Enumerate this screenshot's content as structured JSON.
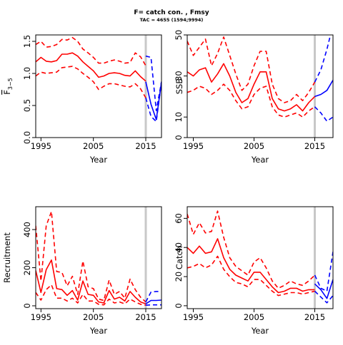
{
  "title": "F= catch con. , Fmsy",
  "subtitle": "TAC = 4655 (1594;9994)",
  "colors": {
    "historic": "#ff0000",
    "forecast": "#0000ff",
    "vline": "#c8c8c8",
    "axis": "#000000"
  },
  "chart_data": [
    {
      "type": "line",
      "id": "fbar",
      "xlabel": "Year",
      "ylabel": "F3-5",
      "ylabel_main": "F",
      "ylabel_sub": "3−5",
      "ylabel_bar": true,
      "xlim": [
        1994,
        2018
      ],
      "ylim": [
        0,
        1.6
      ],
      "xticks": [
        1995,
        2005,
        2015
      ],
      "yticks": [
        0.0,
        0.5,
        1.0,
        1.5
      ],
      "ytick_labels": [
        "0.0",
        "0.5",
        "1.0",
        "1.5"
      ],
      "vline": 2015,
      "grid": false,
      "series": [
        {
          "role": "historic",
          "style": "solid",
          "x": [
            1994,
            1995,
            1996,
            1997,
            1998,
            1999,
            2000,
            2001,
            2002,
            2003,
            2004,
            2005,
            2006,
            2007,
            2008,
            2009,
            2010,
            2011,
            2012,
            2013,
            2014,
            2015
          ],
          "y": [
            1.18,
            1.25,
            1.19,
            1.18,
            1.2,
            1.3,
            1.3,
            1.32,
            1.27,
            1.18,
            1.11,
            1.04,
            0.94,
            0.96,
            1.0,
            1.01,
            1.0,
            0.97,
            0.96,
            1.04,
            0.95,
            0.88
          ]
        },
        {
          "role": "historic",
          "style": "dashed",
          "x": [
            1994,
            1995,
            1996,
            1997,
            1998,
            1999,
            2000,
            2001,
            2002,
            2003,
            2004,
            2005,
            2006,
            2007,
            2008,
            2009,
            2010,
            2011,
            2012,
            2013,
            2014,
            2015
          ],
          "y": [
            1.45,
            1.5,
            1.41,
            1.42,
            1.45,
            1.53,
            1.52,
            1.56,
            1.5,
            1.38,
            1.32,
            1.25,
            1.16,
            1.16,
            1.19,
            1.21,
            1.19,
            1.16,
            1.17,
            1.32,
            1.26,
            1.12
          ]
        },
        {
          "role": "historic",
          "style": "dashed",
          "x": [
            1994,
            1995,
            1996,
            1997,
            1998,
            1999,
            2000,
            2001,
            2002,
            2003,
            2004,
            2005,
            2006,
            2007,
            2008,
            2009,
            2010,
            2011,
            2012,
            2013,
            2014,
            2015
          ],
          "y": [
            0.96,
            1.02,
            1.0,
            1.01,
            1.02,
            1.09,
            1.1,
            1.11,
            1.07,
            1.0,
            0.94,
            0.87,
            0.75,
            0.8,
            0.84,
            0.84,
            0.82,
            0.8,
            0.79,
            0.84,
            0.76,
            0.62
          ]
        },
        {
          "role": "forecast",
          "style": "solid",
          "x": [
            2015,
            2016,
            2017,
            2018
          ],
          "y": [
            0.87,
            0.52,
            0.28,
            0.87
          ]
        },
        {
          "role": "forecast",
          "style": "dashed",
          "x": [
            2015,
            2016,
            2017,
            2018
          ],
          "y": [
            1.27,
            1.25,
            0.42,
            0.87
          ]
        },
        {
          "role": "forecast",
          "style": "dashed",
          "x": [
            2015,
            2016,
            2017,
            2018
          ],
          "y": [
            0.62,
            0.33,
            0.25,
            0.87
          ]
        }
      ]
    },
    {
      "type": "line",
      "id": "ssb",
      "xlabel": "Year",
      "ylabel": "SSB",
      "xlim": [
        1994,
        2018
      ],
      "ylim": [
        0,
        50
      ],
      "xticks": [
        1995,
        2005,
        2015
      ],
      "yticks": [
        0,
        10,
        30,
        50
      ],
      "ytick_labels": [
        "0",
        "10",
        "30",
        "50"
      ],
      "vline": 2015,
      "grid": false,
      "series": [
        {
          "role": "historic",
          "style": "solid",
          "x": [
            1994,
            1995,
            1996,
            1997,
            1998,
            1999,
            2000,
            2001,
            2002,
            2003,
            2004,
            2005,
            2006,
            2007,
            2008,
            2009,
            2010,
            2011,
            2012,
            2013,
            2014,
            2015
          ],
          "y": [
            32,
            30,
            33,
            34,
            27,
            31,
            36,
            30,
            22,
            17,
            19,
            26,
            32,
            32,
            19,
            14,
            13,
            14,
            16,
            13,
            17,
            20
          ]
        },
        {
          "role": "historic",
          "style": "dashed",
          "x": [
            1994,
            1995,
            1996,
            1997,
            1998,
            1999,
            2000,
            2001,
            2002,
            2003,
            2004,
            2005,
            2006,
            2007,
            2008,
            2009,
            2010,
            2011,
            2012,
            2013,
            2014,
            2015
          ],
          "y": [
            47,
            40,
            44,
            48,
            35,
            41,
            49,
            40,
            31,
            23,
            26,
            35,
            42,
            42,
            26,
            19,
            17,
            18,
            21,
            18,
            22,
            27
          ]
        },
        {
          "role": "historic",
          "style": "dashed",
          "x": [
            1994,
            1995,
            1996,
            1997,
            1998,
            1999,
            2000,
            2001,
            2002,
            2003,
            2004,
            2005,
            2006,
            2007,
            2008,
            2009,
            2010,
            2011,
            2012,
            2013,
            2014,
            2015
          ],
          "y": [
            22,
            23,
            25,
            24,
            21,
            23,
            26,
            23,
            18,
            14,
            15,
            21,
            24,
            25,
            15,
            11,
            10,
            11,
            12,
            10,
            13,
            15
          ]
        },
        {
          "role": "forecast",
          "style": "solid",
          "x": [
            2015,
            2016,
            2017,
            2018
          ],
          "y": [
            20,
            21,
            23,
            28
          ]
        },
        {
          "role": "forecast",
          "style": "dashed",
          "x": [
            2015,
            2016,
            2017,
            2018
          ],
          "y": [
            27,
            33,
            43,
            55
          ]
        },
        {
          "role": "forecast",
          "style": "dashed",
          "x": [
            2015,
            2016,
            2017,
            2018
          ],
          "y": [
            15,
            12,
            8,
            10
          ]
        }
      ]
    },
    {
      "type": "line",
      "id": "recruitment",
      "xlabel": "Year",
      "ylabel": "Recruitment",
      "xlim": [
        1994,
        2018
      ],
      "ylim": [
        -15,
        520
      ],
      "xticks": [
        1995,
        2005,
        2015
      ],
      "yticks": [
        0,
        200,
        400
      ],
      "ytick_labels": [
        "0",
        "200",
        "400"
      ],
      "vline": 2015,
      "grid": false,
      "series": [
        {
          "role": "historic",
          "style": "solid",
          "x": [
            1994,
            1995,
            1996,
            1997,
            1998,
            1999,
            2000,
            2001,
            2002,
            2003,
            2004,
            2005,
            2006,
            2007,
            2008,
            2009,
            2010,
            2011,
            2012,
            2013,
            2014,
            2015
          ],
          "y": [
            185,
            70,
            190,
            240,
            90,
            85,
            55,
            80,
            30,
            130,
            60,
            55,
            20,
            15,
            80,
            35,
            45,
            25,
            75,
            45,
            20,
            10
          ]
        },
        {
          "role": "historic",
          "style": "dashed",
          "x": [
            1994,
            1995,
            1996,
            1997,
            1998,
            1999,
            2000,
            2001,
            2002,
            2003,
            2004,
            2005,
            2006,
            2007,
            2008,
            2009,
            2010,
            2011,
            2012,
            2013,
            2014,
            2015
          ],
          "y": [
            420,
            130,
            420,
            495,
            180,
            175,
            105,
            155,
            60,
            235,
            100,
            90,
            35,
            28,
            135,
            60,
            75,
            40,
            140,
            85,
            45,
            20
          ]
        },
        {
          "role": "historic",
          "style": "dashed",
          "x": [
            1994,
            1995,
            1996,
            1997,
            1998,
            1999,
            2000,
            2001,
            2002,
            2003,
            2004,
            2005,
            2006,
            2007,
            2008,
            2009,
            2010,
            2011,
            2012,
            2013,
            2014,
            2015
          ],
          "y": [
            70,
            30,
            85,
            110,
            40,
            40,
            25,
            40,
            15,
            60,
            25,
            25,
            8,
            5,
            35,
            15,
            20,
            10,
            35,
            20,
            8,
            3
          ]
        },
        {
          "role": "forecast",
          "style": "solid",
          "x": [
            2015,
            2016,
            2017,
            2018
          ],
          "y": [
            10,
            28,
            28,
            30
          ]
        },
        {
          "role": "forecast",
          "style": "dashed",
          "x": [
            2015,
            2016,
            2017,
            2018
          ],
          "y": [
            20,
            72,
            75,
            75
          ]
        },
        {
          "role": "forecast",
          "style": "dashed",
          "x": [
            2015,
            2016,
            2017,
            2018
          ],
          "y": [
            3,
            5,
            5,
            5
          ]
        }
      ]
    },
    {
      "type": "line",
      "id": "catch",
      "xlabel": "Year",
      "ylabel": "Catch",
      "xlim": [
        1994,
        2018
      ],
      "ylim": [
        -2,
        68
      ],
      "xticks": [
        1995,
        2005,
        2015
      ],
      "yticks": [
        0,
        20,
        40,
        60
      ],
      "ytick_labels": [
        "0",
        "20",
        "40",
        "60"
      ],
      "vline": 2015,
      "grid": false,
      "series": [
        {
          "role": "historic",
          "style": "solid",
          "x": [
            1994,
            1995,
            1996,
            1997,
            1998,
            1999,
            2000,
            2001,
            2002,
            2003,
            2004,
            2005,
            2006,
            2007,
            2008,
            2009,
            2010,
            2011,
            2012,
            2013,
            2014,
            2015
          ],
          "y": [
            40,
            36,
            41,
            36,
            37,
            46,
            33,
            25,
            21,
            19,
            17,
            23,
            23,
            18,
            13,
            9,
            10,
            12,
            12,
            10,
            11,
            11
          ]
        },
        {
          "role": "historic",
          "style": "dashed",
          "x": [
            1994,
            1995,
            1996,
            1997,
            1998,
            1999,
            2000,
            2001,
            2002,
            2003,
            2004,
            2005,
            2006,
            2007,
            2008,
            2009,
            2010,
            2011,
            2012,
            2013,
            2014,
            2015
          ],
          "y": [
            63,
            49,
            57,
            50,
            51,
            65,
            47,
            33,
            27,
            24,
            21,
            30,
            33,
            26,
            17,
            12,
            14,
            17,
            15,
            14,
            17,
            21
          ]
        },
        {
          "role": "historic",
          "style": "dashed",
          "x": [
            1994,
            1995,
            1996,
            1997,
            1998,
            1999,
            2000,
            2001,
            2002,
            2003,
            2004,
            2005,
            2006,
            2007,
            2008,
            2009,
            2010,
            2011,
            2012,
            2013,
            2014,
            2015
          ],
          "y": [
            26,
            27,
            29,
            26,
            28,
            34,
            25,
            20,
            16,
            15,
            13,
            18,
            18,
            14,
            10,
            7,
            8,
            9,
            9,
            8,
            9,
            10
          ]
        },
        {
          "role": "forecast",
          "style": "solid",
          "x": [
            2015,
            2016,
            2017,
            2018
          ],
          "y": [
            15,
            11,
            5,
            18
          ]
        },
        {
          "role": "forecast",
          "style": "dashed",
          "x": [
            2015,
            2016,
            2017,
            2018
          ],
          "y": [
            21,
            12,
            10,
            37
          ]
        },
        {
          "role": "forecast",
          "style": "dashed",
          "x": [
            2015,
            2016,
            2017,
            2018
          ],
          "y": [
            10,
            6,
            2,
            7
          ]
        }
      ]
    }
  ]
}
